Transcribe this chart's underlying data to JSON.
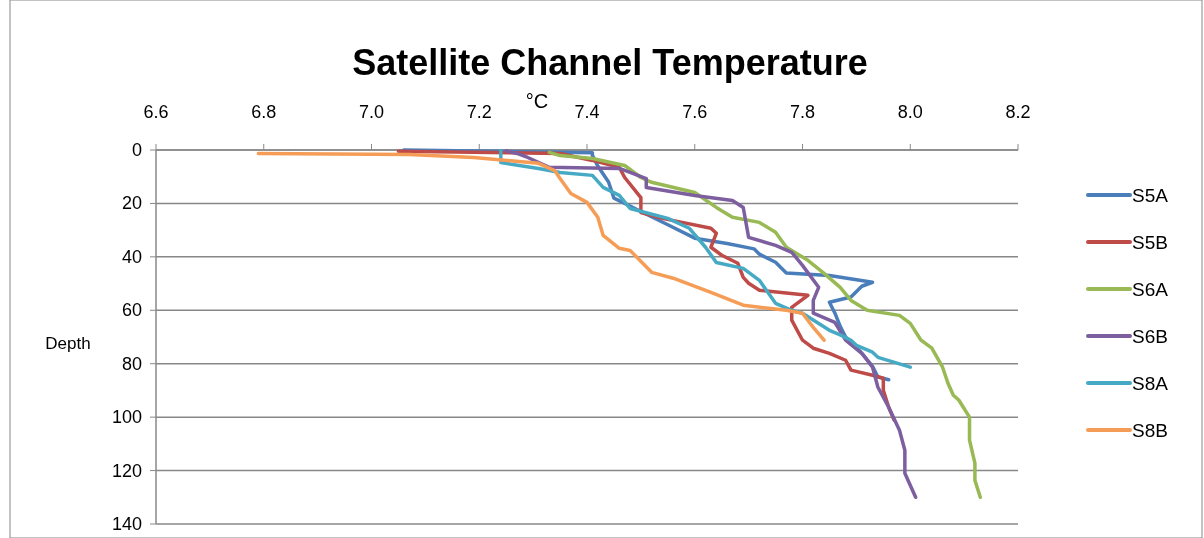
{
  "chart_data": {
    "type": "line",
    "title": "Satellite Channel Temperature",
    "xlabel": "°C",
    "ylabel": "Depth",
    "xlim": [
      6.6,
      8.2
    ],
    "xticks": [
      6.6,
      6.8,
      {
        "value": 7,
        "label": "7.0"
      },
      7.2,
      7.4,
      7.6,
      7.8,
      {
        "value": 8,
        "label": "8.0"
      },
      8.2
    ],
    "ylim": [
      140,
      0
    ],
    "yticks": [
      0,
      20,
      40,
      60,
      80,
      100,
      120,
      140
    ],
    "grid": "y",
    "legend": "right",
    "marker": "none",
    "line_style": "solid",
    "series": [
      {
        "name": "S5A",
        "color": "#4a7ebb",
        "x": [
          7.06,
          7.41,
          7.41,
          7.42,
          7.43,
          7.44,
          7.45,
          7.47,
          7.5,
          7.55,
          7.6,
          7.66,
          7.71,
          7.72,
          7.75,
          7.77,
          7.85,
          7.93,
          7.91,
          7.89,
          7.85,
          7.86,
          7.87,
          7.88,
          7.91,
          7.93,
          7.94,
          7.96
        ],
        "values": [
          0,
          1,
          2,
          6,
          9,
          12,
          18,
          20,
          23,
          28,
          33,
          35,
          37,
          39,
          42,
          46,
          47,
          49.5,
          51,
          55,
          57,
          61,
          66,
          70,
          76,
          81,
          85,
          86
        ]
      },
      {
        "name": "S5B",
        "color": "#be4b48",
        "x": [
          7.05,
          7.35,
          7.41,
          7.46,
          7.47,
          7.5,
          7.5,
          7.54,
          7.63,
          7.64,
          7.63,
          7.65,
          7.68,
          7.69,
          7.7,
          7.72,
          7.81,
          7.78,
          7.78,
          7.8,
          7.82,
          7.85,
          7.88,
          7.89,
          7.93,
          7.95,
          7.95,
          7.96,
          7.97
        ],
        "values": [
          0.5,
          1.3,
          3.9,
          6.5,
          10.3,
          17.8,
          23.4,
          25.6,
          29.3,
          31.2,
          36.4,
          39.4,
          42.4,
          47.7,
          49.9,
          52.5,
          54.4,
          58.9,
          63.7,
          71.2,
          74.2,
          76.1,
          78.7,
          82.4,
          84.3,
          85.4,
          89.9,
          96.3,
          101.1
        ]
      },
      {
        "name": "S6A",
        "color": "#98b954",
        "x": [
          7.33,
          7.35,
          7.41,
          7.47,
          7.5,
          7.52,
          7.6,
          7.64,
          7.67,
          7.72,
          7.75,
          7.77,
          7.81,
          7.84,
          7.87,
          7.89,
          7.92,
          7.98,
          8.0,
          8.02,
          8.04,
          8.06,
          8.07,
          8.08,
          8.09,
          8.11,
          8.11,
          8.12,
          8.12,
          8.13
        ],
        "values": [
          0.9,
          2.1,
          3.2,
          5.8,
          10.3,
          12.1,
          15.9,
          21.5,
          25.2,
          27.1,
          30.8,
          36.4,
          41.3,
          46.2,
          51.4,
          56.3,
          60,
          61.9,
          64.9,
          71.2,
          74.2,
          81.3,
          87.3,
          91.8,
          93.6,
          100,
          108.6,
          117.2,
          123.6,
          130
        ]
      },
      {
        "name": "S6B",
        "color": "#7d5fa0",
        "x": [
          7.25,
          7.27,
          7.29,
          7.33,
          7.46,
          7.48,
          7.51,
          7.51,
          7.6,
          7.67,
          7.69,
          7.7,
          7.75,
          7.78,
          7.8,
          7.83,
          7.82,
          7.82,
          7.86,
          7.88,
          7.91,
          7.93,
          7.94,
          7.96,
          7.98,
          7.99,
          7.99,
          8.01
        ],
        "values": [
          0.3,
          1.3,
          2.8,
          6.5,
          6.9,
          8.4,
          10.7,
          14,
          17,
          18.9,
          21.5,
          32.7,
          35.7,
          38.3,
          43.2,
          51.4,
          56.3,
          61.1,
          64.5,
          71.2,
          76.1,
          81.3,
          88.8,
          96.3,
          104.9,
          112.4,
          121,
          130
        ]
      },
      {
        "name": "S8A",
        "color": "#46aac5",
        "x": [
          7.24,
          7.24,
          7.24,
          7.31,
          7.35,
          7.41,
          7.43,
          7.46,
          7.48,
          7.55,
          7.59,
          7.62,
          7.64,
          7.69,
          7.72,
          7.75,
          7.78,
          7.8,
          7.85,
          7.87,
          7.89,
          7.9,
          7.93,
          7.94,
          8.0
        ],
        "values": [
          0.2,
          2.1,
          4.7,
          6.9,
          8.4,
          9.5,
          14,
          17,
          21.9,
          25.6,
          29.3,
          36.4,
          42.1,
          44.3,
          48.8,
          57.4,
          60,
          61.1,
          67.5,
          69.2,
          71.2,
          73.1,
          75.7,
          77.6,
          81.3
        ]
      },
      {
        "name": "S8B",
        "color": "#f59d56",
        "x": [
          6.79,
          7.07,
          7.19,
          7.31,
          7.34,
          7.35,
          7.37,
          7.4,
          7.42,
          7.43,
          7.46,
          7.48,
          7.52,
          7.56,
          7.63,
          7.69,
          7.77,
          7.8,
          7.82,
          7.84
        ],
        "values": [
          1.3,
          1.7,
          2.8,
          5,
          7.7,
          10.7,
          16.3,
          19.6,
          25.2,
          32,
          36.8,
          37.6,
          45.8,
          48,
          53.3,
          58.1,
          60,
          61.1,
          66.4,
          71.2
        ]
      }
    ]
  }
}
